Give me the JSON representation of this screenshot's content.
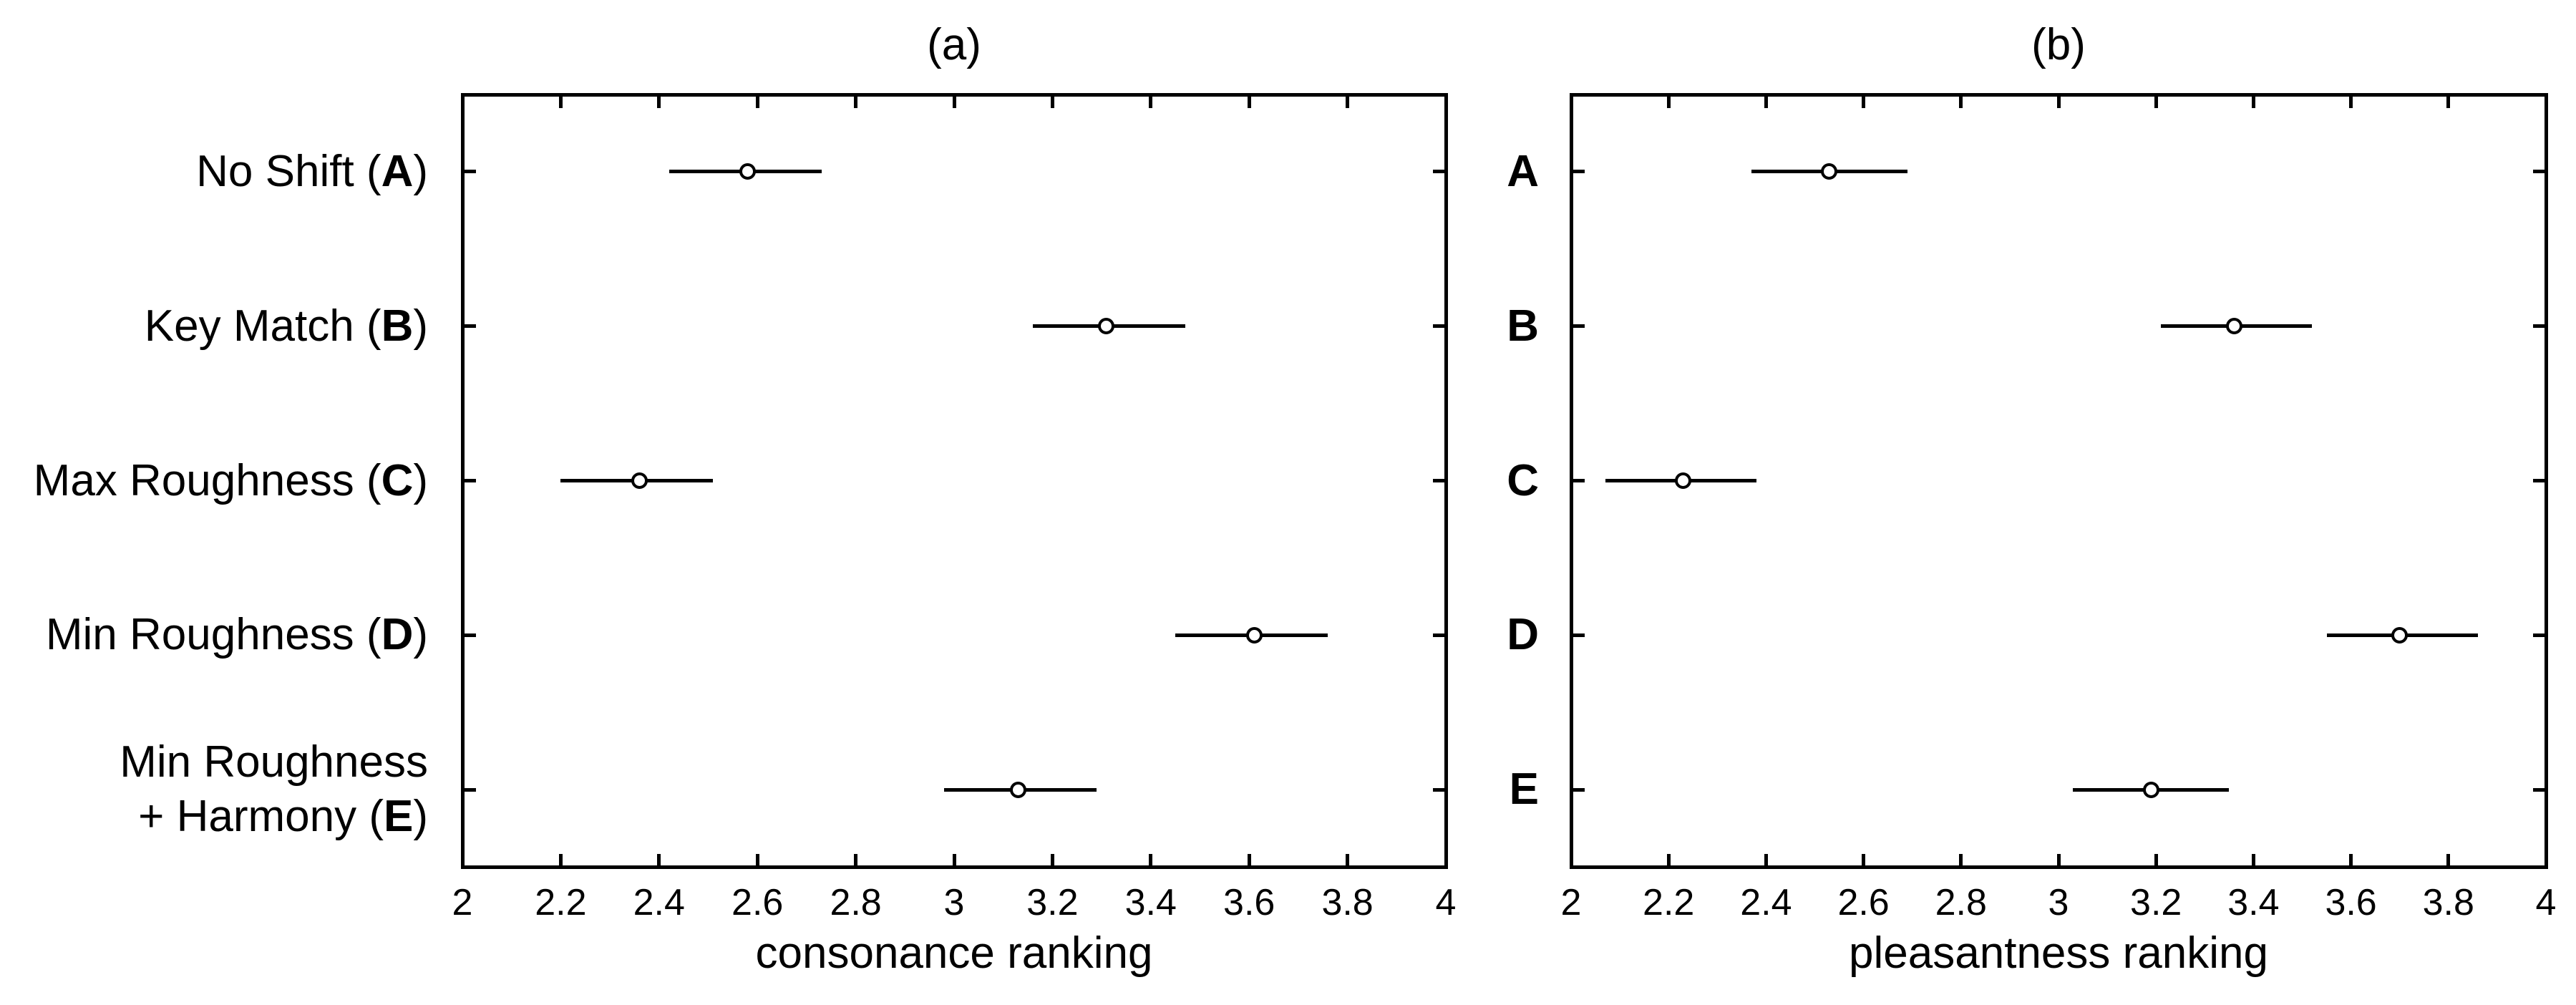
{
  "figure": {
    "background": "#ffffff",
    "ink": "#000000",
    "marker_fill": "#ffffff"
  },
  "chart_data": {
    "type": "scatter",
    "subtype": "dot-plot-with-horizontal-error-bars",
    "orientation": "horizontal",
    "grid": false,
    "legend": null,
    "marker": "open-circle",
    "xlim": [
      2,
      4
    ],
    "xticks": [
      2,
      2.2,
      2.4,
      2.6,
      2.8,
      3,
      3.2,
      3.4,
      3.6,
      3.8,
      4
    ],
    "xtick_labels": [
      "2",
      "2.2",
      "2.4",
      "2.6",
      "2.8",
      "3",
      "3.2",
      "3.4",
      "3.6",
      "3.8",
      "4"
    ],
    "categories": [
      {
        "letter": "A",
        "name": "No Shift"
      },
      {
        "letter": "B",
        "name": "Key Match"
      },
      {
        "letter": "C",
        "name": "Max Roughness"
      },
      {
        "letter": "D",
        "name": "Min Roughness"
      },
      {
        "letter": "E",
        "name": "Min Roughness\n+ Harmony"
      }
    ],
    "panels": [
      {
        "title": "(a)",
        "xlabel": "consonance ranking",
        "ylabel_style": "full-name",
        "series_name": "consonance ranking mean with error bar",
        "means": [
          2.58,
          3.31,
          2.36,
          3.61,
          3.13
        ],
        "err_low": [
          2.42,
          3.16,
          2.2,
          3.45,
          2.98
        ],
        "err_high": [
          2.73,
          3.47,
          2.51,
          3.76,
          3.29
        ]
      },
      {
        "title": "(b)",
        "xlabel": "pleasantness ranking",
        "ylabel_style": "letter-only",
        "series_name": "pleasantness ranking mean with error bar",
        "means": [
          2.53,
          3.36,
          2.23,
          3.7,
          3.19
        ],
        "err_low": [
          2.37,
          3.21,
          2.07,
          3.55,
          3.03
        ],
        "err_high": [
          2.69,
          3.52,
          2.38,
          3.86,
          3.35
        ]
      }
    ]
  }
}
